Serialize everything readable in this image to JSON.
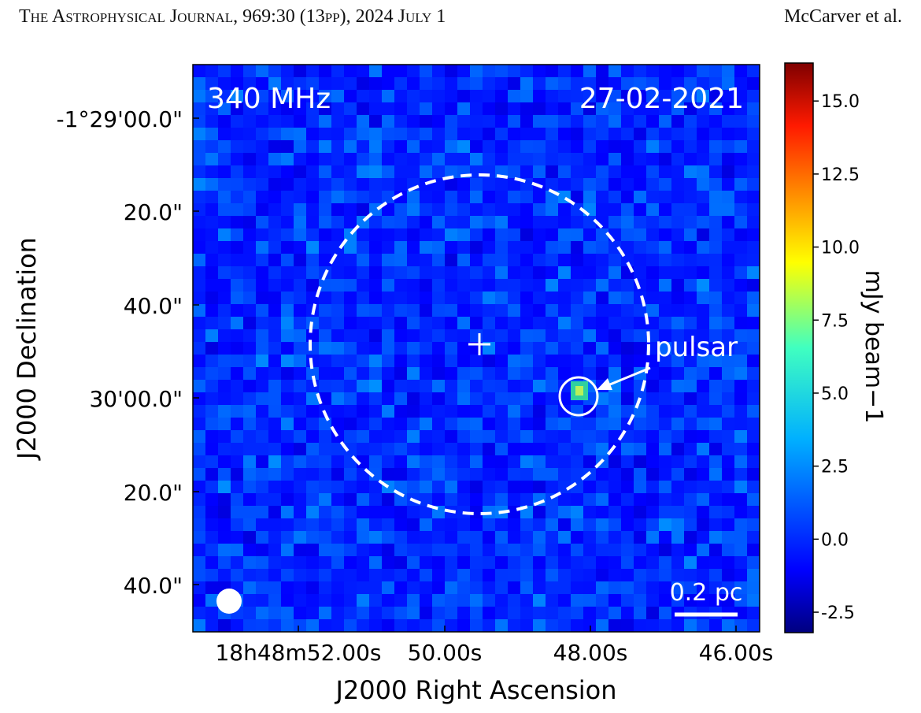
{
  "running_head": {
    "journal": "The Astrophysical Journal",
    "citation": ", 969:30 (13pp), 2024 July 1",
    "authors": "McCarver et al."
  },
  "figure": {
    "frequency_label": "340 MHz",
    "date_label": "27-02-2021",
    "source_label": "pulsar",
    "scale_bar_label": "0.2 pc",
    "colormap": "jet",
    "colors": {
      "annotation": "#ffffff",
      "background_blue": "#1f4de0"
    }
  },
  "chart_data": {
    "type": "heatmap",
    "title": "",
    "xlabel": "J2000 Right Ascension",
    "ylabel": "J2000 Declination",
    "xticks": [
      "18h48m52.00s",
      "50.00s",
      "48.00s",
      "46.00s"
    ],
    "yticks": [
      "-1°29'00.0\"",
      "20.0\"",
      "40.0\"",
      "30'00.0\"",
      "20.0\"",
      "40.0\""
    ],
    "colorbar": {
      "label": "mJy beam−1",
      "range": [
        -3.2,
        16.3
      ],
      "ticks": [
        "-2.5",
        "0.0",
        "2.5",
        "5.0",
        "7.5",
        "10.0",
        "12.5",
        "15.0"
      ],
      "tick_values": [
        -2.5,
        0.0,
        2.5,
        5.0,
        7.5,
        10.0,
        12.5,
        15.0
      ]
    },
    "background_level_range_mJy": [
      -2.5,
      3.5
    ],
    "pulsar_peak_mJy": 6.5,
    "grid": false
  }
}
